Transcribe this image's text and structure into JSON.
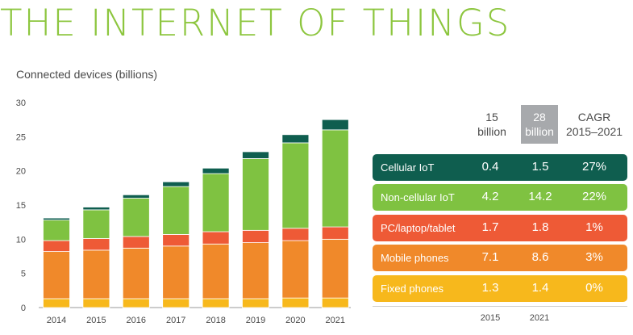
{
  "title": "THE INTERNET OF THINGS",
  "subtitle": "Connected devices (billions)",
  "colors": {
    "title": "#8dc63f",
    "Fixed phones": "#f7b81c",
    "Mobile phones": "#f0892a",
    "PC/laptop/tablet": "#ee5a36",
    "Non-cellular IoT": "#7fc241",
    "Cellular IoT": "#0f5e4f",
    "highlight": "#a7a9ac"
  },
  "chart_data": {
    "type": "bar",
    "stacked": true,
    "categories": [
      "2014",
      "2015",
      "2016",
      "2017",
      "2018",
      "2019",
      "2020",
      "2021"
    ],
    "ylim": [
      0,
      30
    ],
    "yticks": [
      "0",
      "5",
      "10",
      "15",
      "20",
      "25",
      "30"
    ],
    "series": [
      {
        "name": "Fixed phones",
        "values": [
          1.3,
          1.3,
          1.3,
          1.3,
          1.3,
          1.3,
          1.4,
          1.4
        ]
      },
      {
        "name": "Mobile phones",
        "values": [
          6.9,
          7.1,
          7.4,
          7.7,
          8.0,
          8.2,
          8.4,
          8.6
        ]
      },
      {
        "name": "PC/laptop/tablet",
        "values": [
          1.6,
          1.7,
          1.7,
          1.7,
          1.8,
          1.8,
          1.8,
          1.8
        ]
      },
      {
        "name": "Non-cellular IoT",
        "values": [
          3.0,
          4.2,
          5.6,
          7.0,
          8.5,
          10.5,
          12.5,
          14.2
        ]
      },
      {
        "name": "Cellular IoT",
        "values": [
          0.3,
          0.4,
          0.5,
          0.7,
          0.8,
          1.0,
          1.2,
          1.5
        ]
      }
    ]
  },
  "table": {
    "headers": {
      "col2015": {
        "line1": "15",
        "line2": "billion"
      },
      "col2021": {
        "line1": "28",
        "line2": "billion"
      },
      "cagr": {
        "line1": "CAGR",
        "line2": "2015–2021"
      }
    },
    "rows": [
      {
        "label": "Cellular IoT",
        "v2015": "0.4",
        "v2021": "1.5",
        "cagr": "27%"
      },
      {
        "label": "Non-cellular IoT",
        "v2015": "4.2",
        "v2021": "14.2",
        "cagr": "22%"
      },
      {
        "label": "PC/laptop/tablet",
        "v2015": "1.7",
        "v2021": "1.8",
        "cagr": "1%"
      },
      {
        "label": "Mobile phones",
        "v2015": "7.1",
        "v2021": "8.6",
        "cagr": "3%"
      },
      {
        "label": "Fixed phones",
        "v2015": "1.3",
        "v2021": "1.4",
        "cagr": "0%"
      }
    ],
    "footer": {
      "y1": "2015",
      "y2": "2021"
    }
  }
}
